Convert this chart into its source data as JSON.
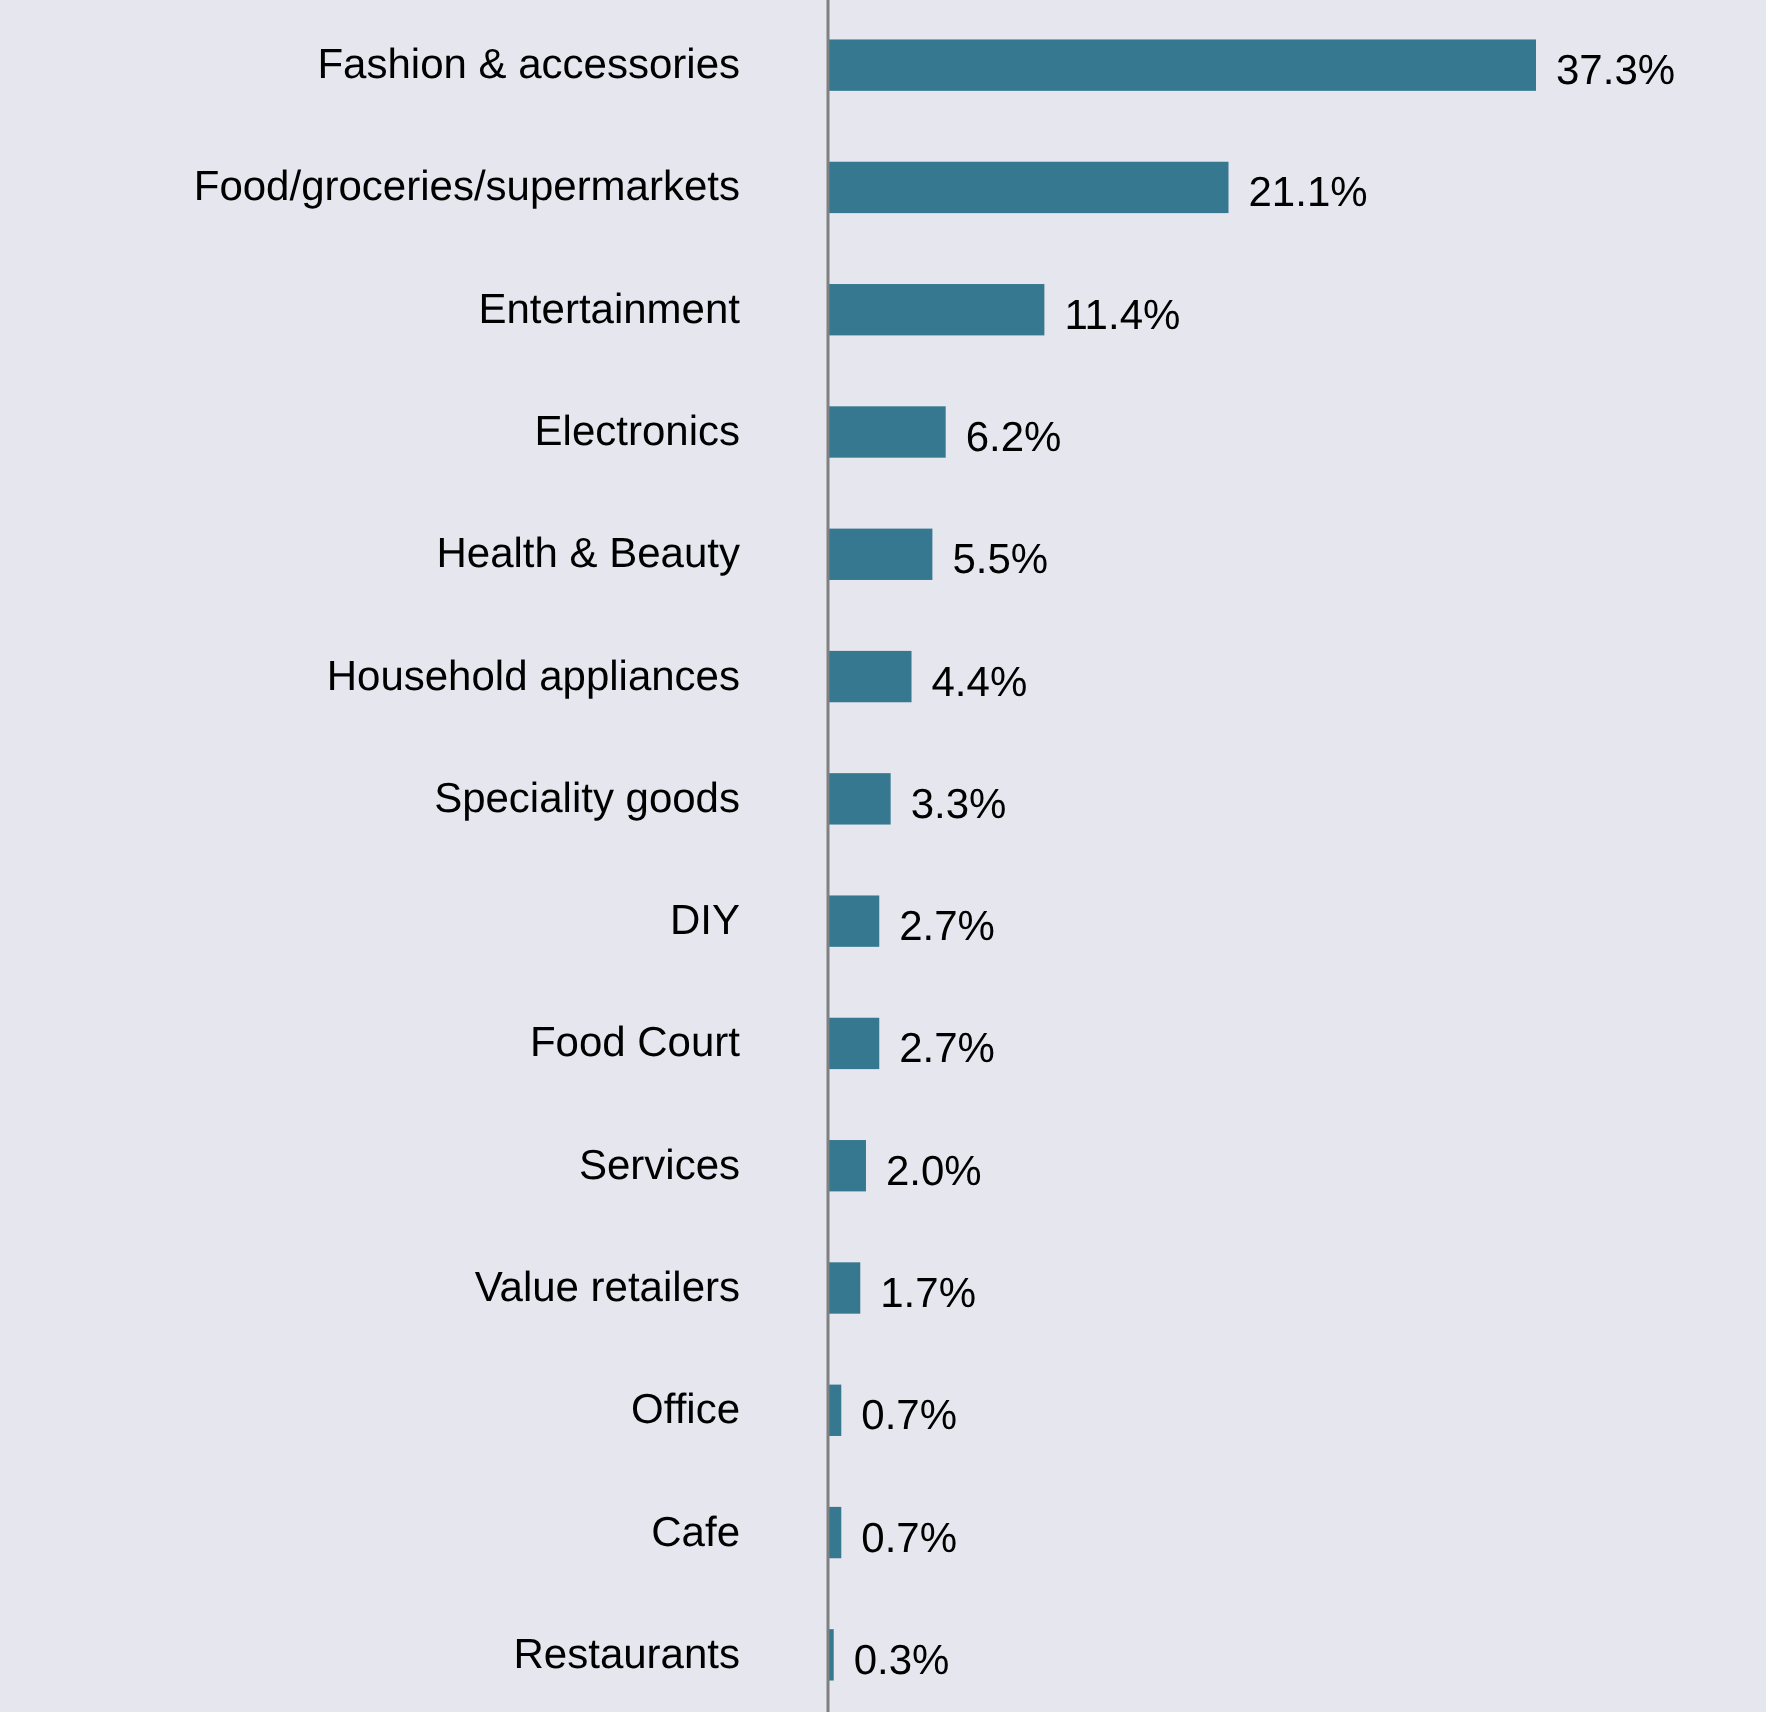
{
  "chart_data": {
    "type": "bar",
    "orientation": "horizontal",
    "categories": [
      "Fashion & accessories",
      "Food/groceries/supermarkets",
      "Entertainment",
      "Electronics",
      "Health & Beauty",
      "Household appliances",
      "Speciality goods",
      "DIY",
      "Food Court",
      "Services",
      "Value retailers",
      "Office",
      "Cafe",
      "Restaurants"
    ],
    "values": [
      37.3,
      21.1,
      11.4,
      6.2,
      5.5,
      4.4,
      3.3,
      2.7,
      2.7,
      2.0,
      1.7,
      0.7,
      0.7,
      0.3
    ],
    "value_labels": [
      "37.3%",
      "21.1%",
      "11.4%",
      "6.2%",
      "5.5%",
      "4.4%",
      "3.3%",
      "2.7%",
      "2.7%",
      "2.0%",
      "1.7%",
      "0.7%",
      "0.7%",
      "0.3%"
    ],
    "color": "#357890"
  }
}
